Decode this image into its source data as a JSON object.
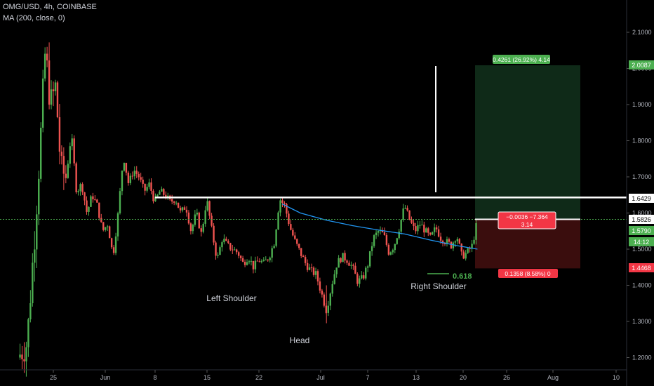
{
  "header": {
    "symbol_line": "OMG/USD, 4h, COINBASE",
    "indicator_line": "MA (200, close, 0)"
  },
  "annotations": {
    "left_shoulder": "Left Shoulder",
    "head": "Head",
    "right_shoulder": "Right Shoulder",
    "fib_level": "0.618"
  },
  "position": {
    "target_label": "0.4261 (26.92%) 4.14",
    "current_label_line1": "−0.0036 −7.364",
    "current_label_line2": "3.14",
    "stop_label": "0.1358 (8.58%) 0"
  },
  "price_badges": {
    "target": "2.0087",
    "resistance": "1.6429",
    "entry": "1.5826",
    "last": "1.5790",
    "countdown": "14:12",
    "stop": "1.4468"
  },
  "chart_data": {
    "type": "candlestick",
    "y_ticks": [
      "2.1000",
      "2.0000",
      "1.9000",
      "1.8000",
      "1.7000",
      "1.6000",
      "1.5000",
      "1.4000",
      "1.3000",
      "1.2000"
    ],
    "x_ticks": [
      "25",
      "Jun",
      "8",
      "15",
      "22",
      "Jul",
      "7",
      "13",
      "20",
      "26",
      "Aug",
      "10"
    ],
    "close_path": [
      [
        0.3,
        1.2
      ],
      [
        1.0,
        1.24
      ],
      [
        1.6,
        1.55
      ],
      [
        2.0,
        1.78
      ],
      [
        2.4,
        2.05
      ],
      [
        2.8,
        1.9
      ],
      [
        3.2,
        1.95
      ],
      [
        3.6,
        1.72
      ],
      [
        4.0,
        1.7
      ],
      [
        4.4,
        1.82
      ],
      [
        4.8,
        1.66
      ],
      [
        5.2,
        1.68
      ],
      [
        5.6,
        1.6
      ],
      [
        6.0,
        1.65
      ],
      [
        6.4,
        1.62
      ],
      [
        6.8,
        1.55
      ],
      [
        7.2,
        1.57
      ],
      [
        7.6,
        1.48
      ],
      [
        8.0,
        1.6
      ],
      [
        8.4,
        1.76
      ],
      [
        8.8,
        1.68
      ],
      [
        9.2,
        1.72
      ],
      [
        9.6,
        1.7
      ],
      [
        10.0,
        1.66
      ],
      [
        10.4,
        1.68
      ],
      [
        10.8,
        1.63
      ],
      [
        11.2,
        1.66
      ],
      [
        11.6,
        1.65
      ],
      [
        12.0,
        1.63
      ],
      [
        12.4,
        1.64
      ],
      [
        12.8,
        1.6
      ],
      [
        13.2,
        1.62
      ],
      [
        13.6,
        1.55
      ],
      [
        14.0,
        1.6
      ],
      [
        14.4,
        1.54
      ],
      [
        14.8,
        1.64
      ],
      [
        15.2,
        1.55
      ],
      [
        15.6,
        1.47
      ],
      [
        16.0,
        1.53
      ],
      [
        16.4,
        1.51
      ],
      [
        16.8,
        1.5
      ],
      [
        17.2,
        1.49
      ],
      [
        17.6,
        1.46
      ],
      [
        18.0,
        1.48
      ],
      [
        18.4,
        1.45
      ],
      [
        18.8,
        1.47
      ],
      [
        19.2,
        1.46
      ],
      [
        19.6,
        1.48
      ],
      [
        20.0,
        1.52
      ],
      [
        20.4,
        1.64
      ],
      [
        20.8,
        1.62
      ],
      [
        21.2,
        1.56
      ],
      [
        21.6,
        1.52
      ],
      [
        22.0,
        1.49
      ],
      [
        22.4,
        1.46
      ],
      [
        22.8,
        1.44
      ],
      [
        23.2,
        1.43
      ],
      [
        23.6,
        1.38
      ],
      [
        24.0,
        1.33
      ],
      [
        24.4,
        1.4
      ],
      [
        24.8,
        1.46
      ],
      [
        25.2,
        1.48
      ],
      [
        25.6,
        1.47
      ],
      [
        26.0,
        1.45
      ],
      [
        26.4,
        1.41
      ],
      [
        26.8,
        1.42
      ],
      [
        27.2,
        1.46
      ],
      [
        27.6,
        1.53
      ],
      [
        28.0,
        1.55
      ],
      [
        28.4,
        1.54
      ],
      [
        28.8,
        1.49
      ],
      [
        29.2,
        1.51
      ],
      [
        29.6,
        1.56
      ],
      [
        30.0,
        1.62
      ],
      [
        30.4,
        1.58
      ],
      [
        30.8,
        1.55
      ],
      [
        31.2,
        1.57
      ],
      [
        31.6,
        1.55
      ],
      [
        32.0,
        1.53
      ],
      [
        32.4,
        1.56
      ],
      [
        32.8,
        1.53
      ],
      [
        33.2,
        1.52
      ],
      [
        33.6,
        1.51
      ],
      [
        34.0,
        1.54
      ],
      [
        34.4,
        1.48
      ],
      [
        34.8,
        1.49
      ],
      [
        35.2,
        1.51
      ],
      [
        35.6,
        1.58
      ]
    ],
    "ma_path": [
      [
        20.6,
        1.625
      ],
      [
        22.0,
        1.6
      ],
      [
        24.0,
        1.58
      ],
      [
        26.0,
        1.565
      ],
      [
        28.0,
        1.553
      ],
      [
        30.0,
        1.542
      ],
      [
        32.0,
        1.525
      ],
      [
        34.0,
        1.51
      ],
      [
        35.6,
        1.5
      ]
    ],
    "resistance_level": 1.6429,
    "entry_price": 1.5826,
    "target_price": 2.0087,
    "stop_price": 1.4468,
    "fib_value": 0.618,
    "fib_price": 1.4468
  },
  "colors": {
    "background": "#000000",
    "up": "#26a69a",
    "up_bright": "#4caf50",
    "down": "#ef5350",
    "ma": "#2196f3",
    "target_zone": "#0f2a18",
    "stop_zone": "#3a0d0d",
    "target_badge": "#4caf50",
    "stop_badge": "#f23645",
    "entry_line": "#4caf50"
  }
}
